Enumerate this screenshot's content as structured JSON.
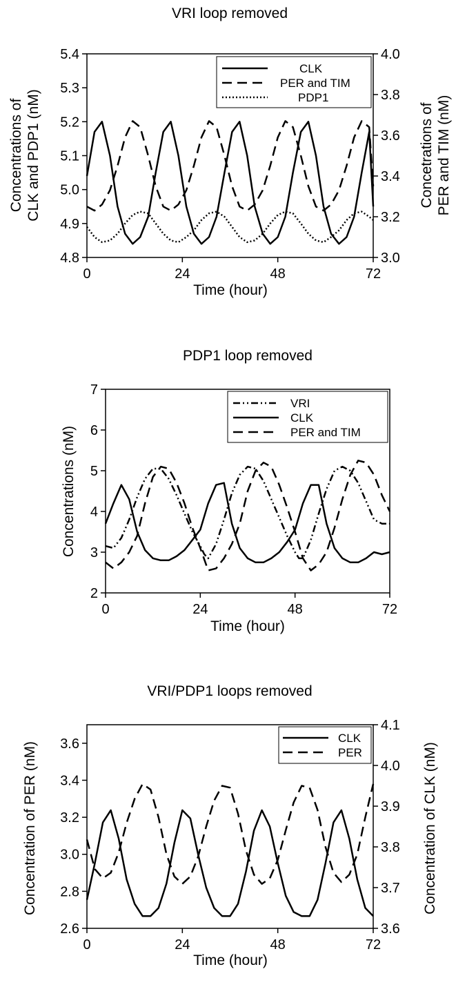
{
  "chart_data": [
    {
      "type": "line",
      "title": "VRI loop removed",
      "xlabel": "Time (hour)",
      "ylabel": "Concentrations of CLK and PDP1 (nM)",
      "ylabel_lines": [
        "Concentrations of",
        "CLK and PDP1 (nM)"
      ],
      "y2label": "Concetrations of PER and TIM (nM)",
      "y2label_lines": [
        "Concetrations of",
        "PER and TIM (nM)"
      ],
      "xlim": [
        0,
        72
      ],
      "ylim": [
        4.8,
        5.4
      ],
      "y2lim": [
        3.0,
        4.0
      ],
      "xticks": [
        "0",
        "24",
        "48",
        "72"
      ],
      "yticks": [
        "4.8",
        "4.9",
        "5.0",
        "5.1",
        "5.2",
        "5.3",
        "5.4"
      ],
      "y2ticks": [
        "3.0",
        "3.2",
        "3.4",
        "3.6",
        "3.8",
        "4.0"
      ],
      "legend_position": "top-right",
      "series": [
        {
          "name": "CLK",
          "axis": "left",
          "style": "solid",
          "x": [
            0,
            1.9,
            3.8,
            5.8,
            7.7,
            9.6,
            11.5,
            13.4,
            15.4,
            17.3,
            19.2,
            21.1,
            23,
            25,
            26.9,
            28.8,
            30.7,
            32.6,
            34.6,
            36.5,
            38.4,
            40.3,
            42.2,
            44.2,
            46.1,
            48,
            49.9,
            51.8,
            53.8,
            55.7,
            57.6,
            59.5,
            61.4,
            63.4,
            65.3,
            67.2,
            69.1,
            71,
            72
          ],
          "y": [
            5.04,
            5.17,
            5.2,
            5.1,
            4.95,
            4.87,
            4.84,
            4.86,
            4.92,
            5.05,
            5.17,
            5.2,
            5.1,
            4.95,
            4.87,
            4.84,
            4.86,
            4.92,
            5.05,
            5.17,
            5.2,
            5.1,
            4.95,
            4.87,
            4.84,
            4.86,
            4.92,
            5.05,
            5.17,
            5.2,
            5.1,
            4.95,
            4.87,
            4.84,
            4.86,
            4.92,
            5.05,
            5.17,
            4.95
          ]
        },
        {
          "name": "PER and TIM",
          "axis": "right",
          "style": "dashed",
          "x": [
            0,
            1.9,
            3.8,
            5.8,
            7.7,
            9.6,
            11.5,
            13.4,
            15.4,
            17.3,
            19.2,
            21.1,
            23,
            25,
            26.9,
            28.8,
            30.7,
            32.6,
            34.6,
            36.5,
            38.4,
            40.3,
            42.2,
            44.2,
            46.1,
            48,
            49.9,
            51.8,
            53.8,
            55.7,
            57.6,
            59.5,
            61.4,
            63.4,
            65.3,
            67.2,
            69.1,
            71,
            72
          ],
          "y": [
            3.25,
            3.23,
            3.26,
            3.33,
            3.45,
            3.59,
            3.67,
            3.64,
            3.5,
            3.35,
            3.25,
            3.23,
            3.26,
            3.33,
            3.45,
            3.59,
            3.67,
            3.64,
            3.5,
            3.35,
            3.25,
            3.23,
            3.26,
            3.33,
            3.45,
            3.59,
            3.67,
            3.64,
            3.5,
            3.35,
            3.25,
            3.23,
            3.26,
            3.33,
            3.45,
            3.59,
            3.67,
            3.64,
            3.35
          ]
        },
        {
          "name": "PDP1",
          "axis": "left",
          "style": "dotted",
          "x": [
            0,
            1.9,
            3.8,
            5.8,
            7.7,
            9.6,
            11.5,
            13.4,
            15.4,
            17.3,
            19.2,
            21.1,
            23,
            25,
            26.9,
            28.8,
            30.7,
            32.6,
            34.6,
            36.5,
            38.4,
            40.3,
            42.2,
            44.2,
            46.1,
            48,
            49.9,
            51.8,
            53.8,
            55.7,
            57.6,
            59.5,
            61.4,
            63.4,
            65.3,
            67.2,
            69.1,
            71,
            72
          ],
          "y": [
            4.89,
            4.86,
            4.845,
            4.85,
            4.87,
            4.9,
            4.925,
            4.935,
            4.93,
            4.9,
            4.87,
            4.85,
            4.845,
            4.86,
            4.88,
            4.91,
            4.93,
            4.935,
            4.92,
            4.89,
            4.86,
            4.845,
            4.85,
            4.87,
            4.9,
            4.925,
            4.935,
            4.93,
            4.9,
            4.87,
            4.85,
            4.845,
            4.86,
            4.88,
            4.91,
            4.93,
            4.935,
            4.92,
            4.91
          ]
        }
      ]
    },
    {
      "type": "line",
      "title": "PDP1 loop removed",
      "xlabel": "Time (hour)",
      "ylabel": "Concentrations (nM)",
      "xlim": [
        0,
        72
      ],
      "ylim": [
        2,
        7
      ],
      "xticks": [
        "0",
        "24",
        "48",
        "72"
      ],
      "yticks": [
        "2",
        "3",
        "4",
        "5",
        "6",
        "7"
      ],
      "legend_position": "top-right",
      "series": [
        {
          "name": "VRI",
          "axis": "left",
          "style": "dashdotdot",
          "x": [
            0,
            2,
            4,
            6,
            8,
            10,
            12,
            14,
            16,
            18,
            20,
            22,
            24,
            25,
            26,
            28,
            30,
            32,
            34,
            36,
            38,
            40,
            42,
            44,
            46,
            48,
            49,
            50,
            52,
            54,
            56,
            58,
            60,
            62,
            64,
            66,
            68,
            70,
            72
          ],
          "y": [
            3.15,
            3.1,
            3.35,
            3.8,
            4.35,
            4.8,
            5.05,
            5.05,
            4.8,
            4.4,
            3.95,
            3.5,
            3.15,
            2.95,
            2.85,
            3.2,
            3.8,
            4.45,
            4.9,
            5.1,
            5.05,
            4.75,
            4.3,
            3.85,
            3.4,
            3.0,
            2.85,
            2.85,
            3.3,
            3.95,
            4.55,
            5.0,
            5.1,
            5.0,
            4.7,
            4.25,
            3.8,
            3.7,
            3.7
          ]
        },
        {
          "name": "CLK",
          "axis": "left",
          "style": "solid",
          "x": [
            0,
            2,
            4,
            6,
            8,
            10,
            12,
            14,
            16,
            18,
            20,
            22,
            24,
            26,
            28,
            30,
            32,
            34,
            36,
            38,
            40,
            42,
            44,
            46,
            48,
            50,
            52,
            54,
            56,
            58,
            60,
            62,
            64,
            66,
            68,
            70,
            72
          ],
          "y": [
            3.7,
            4.2,
            4.65,
            4.3,
            3.5,
            3.05,
            2.85,
            2.8,
            2.8,
            2.9,
            3.05,
            3.3,
            3.55,
            4.2,
            4.65,
            4.7,
            3.7,
            3.1,
            2.85,
            2.75,
            2.75,
            2.85,
            3.0,
            3.25,
            3.55,
            4.2,
            4.65,
            4.65,
            3.7,
            3.1,
            2.85,
            2.75,
            2.75,
            2.85,
            3.0,
            2.95,
            3.0
          ]
        },
        {
          "name": "PER and TIM",
          "axis": "left",
          "style": "dashed",
          "x": [
            0,
            2,
            4,
            6,
            8,
            10,
            12,
            14,
            16,
            18,
            20,
            22,
            24,
            26,
            28,
            30,
            32,
            34,
            36,
            38,
            40,
            42,
            44,
            46,
            48,
            50,
            52,
            54,
            56,
            58,
            60,
            62,
            64,
            66,
            68,
            70,
            72
          ],
          "y": [
            2.75,
            2.6,
            2.75,
            3.0,
            3.4,
            4.2,
            4.85,
            5.1,
            5.05,
            4.7,
            4.2,
            3.6,
            3.1,
            2.55,
            2.6,
            2.85,
            3.2,
            3.7,
            4.5,
            5.0,
            5.2,
            5.1,
            4.65,
            4.1,
            3.5,
            2.85,
            2.55,
            2.7,
            3.0,
            3.6,
            4.3,
            4.9,
            5.25,
            5.2,
            4.9,
            4.4,
            4.0
          ]
        }
      ]
    },
    {
      "type": "line",
      "title": "VRI/PDP1 loops removed",
      "xlabel": "Time (hour)",
      "ylabel": "Concentration of PER (nM)",
      "y2label": "Concentration of CLK (nM)",
      "xlim": [
        0,
        72
      ],
      "ylim": [
        2.6,
        3.7
      ],
      "y2lim": [
        3.6,
        4.1
      ],
      "xticks": [
        "0",
        "24",
        "48",
        "72"
      ],
      "yticks": [
        "2.6",
        "2.8",
        "3.0",
        "3.2",
        "3.4",
        "3.6"
      ],
      "y2ticks": [
        "3.6",
        "3.7",
        "3.8",
        "3.9",
        "4.0",
        "4.1"
      ],
      "legend_position": "top-right",
      "series": [
        {
          "name": "CLK",
          "axis": "right",
          "style": "solid",
          "x": [
            0,
            2,
            4,
            6,
            8,
            10,
            12,
            14,
            16,
            18,
            20,
            22,
            24,
            26,
            28,
            30,
            32,
            34,
            36,
            38,
            40,
            42,
            44,
            46,
            48,
            50,
            52,
            54,
            56,
            58,
            60,
            62,
            64,
            66,
            68,
            70,
            72
          ],
          "y": [
            3.67,
            3.76,
            3.86,
            3.89,
            3.82,
            3.72,
            3.66,
            3.63,
            3.63,
            3.65,
            3.71,
            3.81,
            3.89,
            3.87,
            3.78,
            3.7,
            3.65,
            3.63,
            3.63,
            3.66,
            3.74,
            3.84,
            3.89,
            3.85,
            3.76,
            3.68,
            3.64,
            3.63,
            3.63,
            3.67,
            3.76,
            3.86,
            3.89,
            3.82,
            3.72,
            3.65,
            3.63
          ]
        },
        {
          "name": "PER",
          "axis": "left",
          "style": "dashed",
          "x": [
            0,
            2,
            4,
            6,
            8,
            10,
            12,
            14,
            16,
            18,
            20,
            22,
            24,
            26,
            28,
            30,
            32,
            34,
            36,
            38,
            40,
            42,
            44,
            46,
            48,
            50,
            52,
            54,
            56,
            58,
            60,
            62,
            64,
            66,
            68,
            70,
            72
          ],
          "y": [
            3.08,
            2.92,
            2.87,
            2.9,
            3.01,
            3.17,
            3.3,
            3.38,
            3.35,
            3.2,
            3.0,
            2.88,
            2.84,
            2.88,
            2.99,
            3.15,
            3.29,
            3.37,
            3.36,
            3.22,
            3.02,
            2.89,
            2.84,
            2.87,
            2.97,
            3.13,
            3.28,
            3.37,
            3.36,
            3.24,
            3.04,
            2.9,
            2.85,
            2.89,
            3.0,
            3.2,
            3.38
          ]
        }
      ]
    }
  ]
}
